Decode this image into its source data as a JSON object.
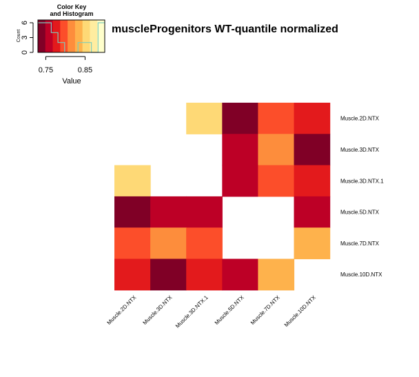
{
  "chart_data": {
    "type": "heatmap",
    "title": "muscleProgenitors WT-quantile normalized",
    "columns": [
      "Muscle.2D.NTX",
      "Muscle.3D.NTX",
      "Muscle.3D.NTX.1",
      "Muscle.5D.NTX",
      "Muscle.7D.NTX",
      "Muscle.10D.NTX"
    ],
    "rows": [
      "Muscle.2D.NTX",
      "Muscle.3D.NTX",
      "Muscle.3D.NTX.1",
      "Muscle.5D.NTX",
      "Muscle.7D.NTX",
      "Muscle.10D.NTX"
    ],
    "values": [
      [
        null,
        null,
        0.86,
        0.74,
        0.8,
        0.77
      ],
      [
        null,
        null,
        null,
        0.76,
        0.81,
        0.74
      ],
      [
        0.86,
        null,
        null,
        0.76,
        0.8,
        0.77
      ],
      [
        0.74,
        0.76,
        0.76,
        null,
        null,
        0.76
      ],
      [
        0.8,
        0.81,
        0.8,
        null,
        null,
        0.84
      ],
      [
        0.77,
        0.74,
        0.77,
        0.76,
        0.84,
        null
      ]
    ],
    "color_key": {
      "title_line1": "Color Key",
      "title_line2": "and Histogram",
      "xlabel": "Value",
      "ylabel": "Count",
      "x_ticks": [
        0.75,
        0.85
      ],
      "y_ticks": [
        0,
        3,
        6
      ],
      "range": [
        0.73,
        0.9
      ],
      "colors": [
        "#800026",
        "#BD0026",
        "#E31A1C",
        "#FC4E2A",
        "#FD8D3C",
        "#FEB24C",
        "#FED976",
        "#FFEDA0",
        "#FFFFCC"
      ],
      "histogram_color": "#7FCDBB",
      "histogram_counts": [
        6,
        6,
        4,
        2,
        0,
        0,
        2,
        2,
        0,
        6
      ]
    }
  }
}
